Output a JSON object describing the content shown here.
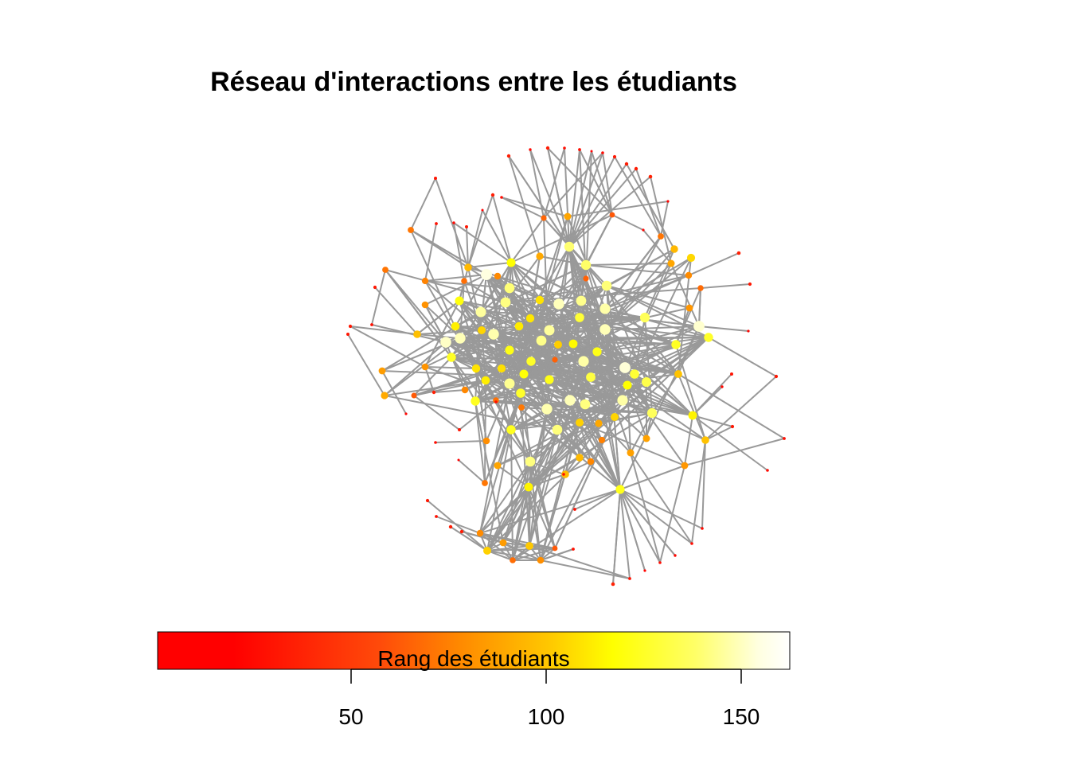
{
  "title": "Réseau d'interactions entre les étudiants",
  "colorbar": {
    "label": "Rang des étudiants",
    "ticks": [
      "50",
      "100",
      "150"
    ],
    "colors": [
      "#ff0000",
      "#ff0000",
      "#ff4500",
      "#ff8c00",
      "#ffd700",
      "#ffff00",
      "#ffff66",
      "#ffffe0",
      "#ffffff"
    ]
  },
  "colors": {
    "edge": "#999999",
    "low_rank": "#ff0000",
    "mid_rank": "#ffa500",
    "high_rank": "#ffffe0"
  }
}
